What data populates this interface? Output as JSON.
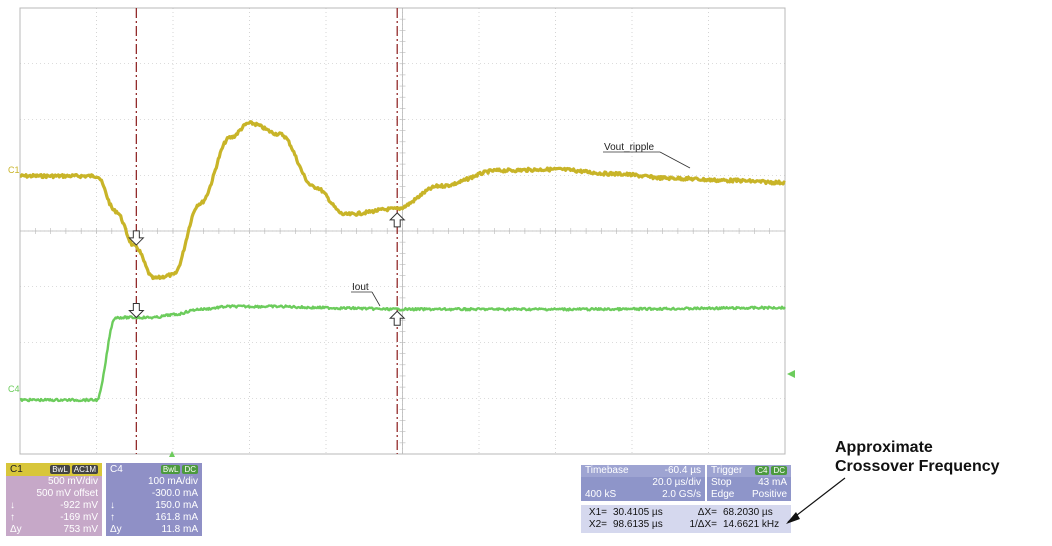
{
  "chart_data": {
    "type": "line",
    "x": [
      0,
      10,
      20,
      25,
      30,
      35,
      40,
      47,
      55,
      60,
      68,
      77,
      85,
      98,
      110,
      125,
      140,
      155,
      170,
      185,
      200,
      210
    ],
    "xlim": [
      0,
      200
    ],
    "xunit": "µs",
    "grid": true,
    "legend": "none",
    "series": [
      {
        "name": "Vout_ripple",
        "channel": "C1",
        "color": "#c8b428",
        "values": [
          0,
          0,
          0,
          -320,
          -640,
          -930,
          -900,
          -250,
          350,
          480,
          380,
          -100,
          -350,
          -300,
          -90,
          50,
          60,
          20,
          -20,
          -40,
          -60,
          -60
        ]
      },
      {
        "name": "Iout",
        "channel": "C4",
        "color": "#6ccc5c",
        "values": [
          0,
          0,
          0,
          150,
          150,
          150,
          155,
          165,
          170,
          170,
          170,
          168,
          167,
          165,
          165,
          165,
          165,
          165,
          166,
          167,
          168,
          168
        ]
      }
    ],
    "labels": {
      "c1_marker": "C1",
      "c4_marker": "C4",
      "vout": "Vout_ripple",
      "iout": "Iout"
    }
  },
  "panels": {
    "c1": {
      "name": "C1",
      "bw": "BwL",
      "coupling": "AC1M",
      "rows": [
        [
          "",
          "500 mV/div"
        ],
        [
          "",
          "500 mV offset"
        ],
        [
          "↓",
          "-922 mV"
        ],
        [
          "↑",
          "-169 mV"
        ],
        [
          "Δy",
          "753 mV"
        ]
      ]
    },
    "c4": {
      "name": "C4",
      "bw": "BwL",
      "coupling": "DC",
      "rows": [
        [
          "",
          "100 mA/div"
        ],
        [
          "",
          "-300.0 mA"
        ],
        [
          "↓",
          "150.0 mA"
        ],
        [
          "↑",
          "161.8 mA"
        ],
        [
          "Δy",
          "11.8 mA"
        ]
      ]
    },
    "timebase": {
      "label": "Timebase",
      "delay": "-60.4 µs",
      "rows": [
        [
          "",
          "20.0 µs/div"
        ],
        [
          "400 kS",
          "2.0 GS/s"
        ]
      ]
    },
    "trigger": {
      "label": "Trigger",
      "source": "C4",
      "coupling": "DC",
      "rows": [
        [
          "Stop",
          "43 mA"
        ],
        [
          "Edge",
          "Positive"
        ]
      ]
    },
    "cursors": {
      "x1_label": "X1=",
      "x1": "30.4105 µs",
      "dx_label": "ΔX=",
      "dx": "68.2030 µs",
      "x2_label": "X2=",
      "x2": "98.6135 µs",
      "inv_label": "1/ΔX=",
      "inv": "14.6621 kHz"
    }
  },
  "annotation": {
    "line1": "Approximate",
    "line2": "Crossover Frequency"
  },
  "colors": {
    "grid": "#b8b8b8",
    "vout": "#c8b428",
    "iout": "#6ccc5c",
    "cursor": "#8a1a1a",
    "trigger_marker": "#6ccc5c"
  }
}
